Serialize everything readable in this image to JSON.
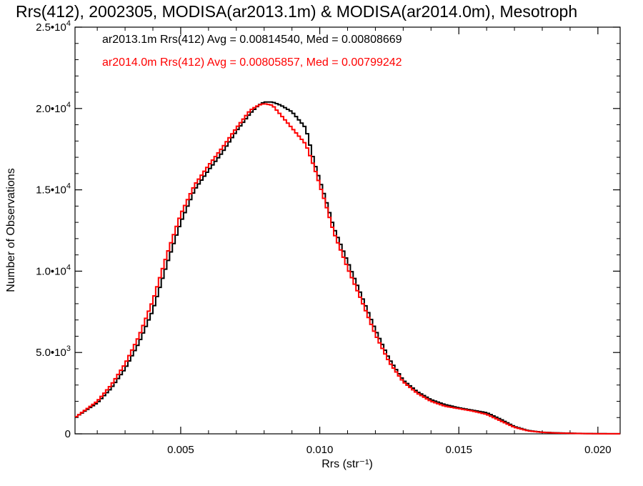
{
  "chart_data": {
    "type": "line",
    "step": true,
    "title": "Rrs(412), 2002305, MODISA(ar2013.1m) & MODISA(ar2014.0m), Mesotroph",
    "xlabel": "Rrs (str⁻¹)",
    "ylabel": "Number of Observations",
    "xlim": [
      0.0012,
      0.0208
    ],
    "ylim": [
      0,
      25000
    ],
    "x_ticks": [
      {
        "value": 0.005,
        "label": "0.005"
      },
      {
        "value": 0.01,
        "label": "0.010"
      },
      {
        "value": 0.015,
        "label": "0.015"
      },
      {
        "value": 0.02,
        "label": "0.020"
      }
    ],
    "y_ticks": [
      {
        "value": 0,
        "mant": "0",
        "exp": ""
      },
      {
        "value": 5000,
        "mant": "5.0•10",
        "exp": "3"
      },
      {
        "value": 10000,
        "mant": "1.0•10",
        "exp": "4"
      },
      {
        "value": 15000,
        "mant": "1.5•10",
        "exp": "4"
      },
      {
        "value": 20000,
        "mant": "2.0•10",
        "exp": "4"
      },
      {
        "value": 25000,
        "mant": "2.5•10",
        "exp": "4"
      }
    ],
    "grid": false,
    "legend_placement": "top-left",
    "series": [
      {
        "name": "ar2013.1m Rrs(412) Avg = 0.00814540, Med = 0.00808669",
        "color": "#000000",
        "x": [
          0.0012,
          0.002,
          0.0025,
          0.003,
          0.0035,
          0.004,
          0.0045,
          0.005,
          0.0055,
          0.006,
          0.0065,
          0.007,
          0.0075,
          0.0078,
          0.008,
          0.0083,
          0.0086,
          0.009,
          0.0095,
          0.0098,
          0.0102,
          0.0105,
          0.011,
          0.0115,
          0.012,
          0.0125,
          0.013,
          0.0135,
          0.014,
          0.0145,
          0.015,
          0.0155,
          0.016,
          0.0165,
          0.017,
          0.0175,
          0.018,
          0.0185,
          0.019,
          0.0195,
          0.02,
          0.0208
        ],
        "y": [
          1000,
          1900,
          2800,
          4000,
          5600,
          7600,
          10400,
          13000,
          15000,
          16200,
          17300,
          18600,
          19700,
          20200,
          20400,
          20400,
          20200,
          19800,
          18800,
          16700,
          14500,
          12700,
          10600,
          8500,
          6400,
          4600,
          3300,
          2600,
          2100,
          1800,
          1600,
          1450,
          1300,
          900,
          450,
          200,
          100,
          60,
          40,
          20,
          10,
          5
        ]
      },
      {
        "name": "ar2014.0m Rrs(412) Avg = 0.00805857, Med = 0.00799242",
        "color": "#ff0000",
        "x": [
          0.0012,
          0.002,
          0.0025,
          0.003,
          0.0035,
          0.004,
          0.0045,
          0.005,
          0.0055,
          0.006,
          0.0065,
          0.007,
          0.0075,
          0.0078,
          0.008,
          0.0083,
          0.0086,
          0.009,
          0.0095,
          0.0098,
          0.0102,
          0.0105,
          0.011,
          0.0115,
          0.012,
          0.0125,
          0.013,
          0.0135,
          0.014,
          0.0145,
          0.015,
          0.0155,
          0.016,
          0.0165,
          0.017,
          0.0175,
          0.018,
          0.0185,
          0.019,
          0.0195,
          0.02,
          0.0208
        ],
        "y": [
          1000,
          2000,
          3000,
          4300,
          6000,
          8200,
          11000,
          13500,
          15300,
          16500,
          17600,
          18800,
          19900,
          20200,
          20300,
          20200,
          19600,
          18800,
          17800,
          16400,
          14200,
          12400,
          10200,
          8200,
          6100,
          4400,
          3200,
          2500,
          2000,
          1700,
          1550,
          1400,
          1200,
          800,
          400,
          180,
          90,
          50,
          30,
          15,
          8,
          4
        ]
      }
    ]
  }
}
